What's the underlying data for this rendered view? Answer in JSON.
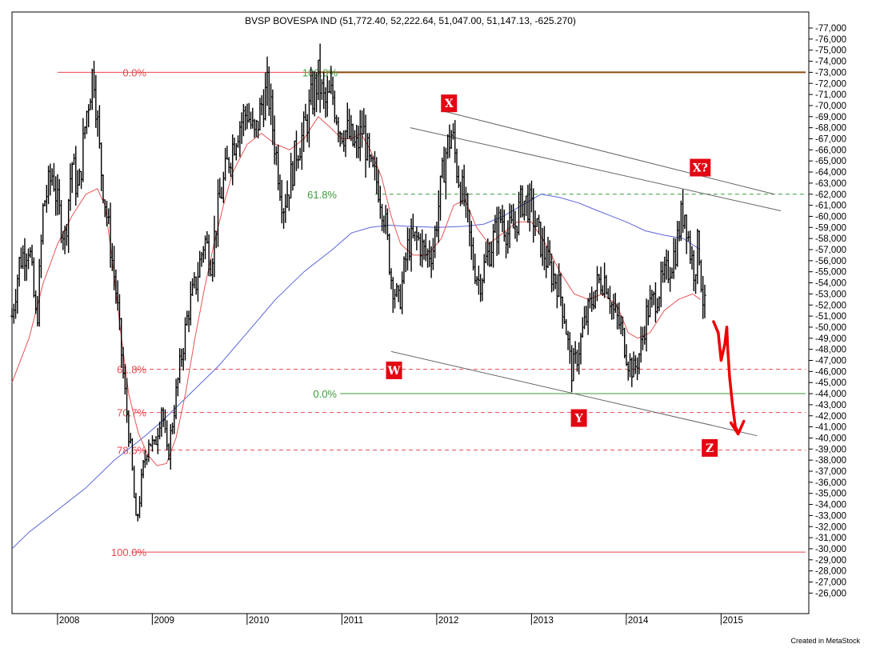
{
  "chart_data": {
    "type": "ohlc",
    "title": "BVSP BOVESPA IND (51,772.40, 52,222.64, 51,047.00, 51,147.13, -625.270)",
    "credit": "Created in MetaStock",
    "ylim": [
      25000,
      78000
    ],
    "xlim": [
      2007.52,
      2015.8
    ],
    "y_ticks": [
      26000,
      27000,
      28000,
      29000,
      30000,
      31000,
      32000,
      33000,
      34000,
      35000,
      36000,
      37000,
      38000,
      39000,
      40000,
      41000,
      42000,
      43000,
      44000,
      45000,
      46000,
      47000,
      48000,
      49000,
      50000,
      51000,
      52000,
      53000,
      54000,
      55000,
      56000,
      57000,
      58000,
      59000,
      60000,
      61000,
      62000,
      63000,
      64000,
      65000,
      66000,
      67000,
      68000,
      69000,
      70000,
      71000,
      72000,
      73000,
      74000,
      75000,
      76000,
      77000
    ],
    "x_ticks": [
      {
        "label": "2008",
        "x": 2008.0
      },
      {
        "label": "2009",
        "x": 2009.0
      },
      {
        "label": "2010",
        "x": 2010.0
      },
      {
        "label": "2011",
        "x": 2011.0
      },
      {
        "label": "2012",
        "x": 2012.0
      },
      {
        "label": "2013",
        "x": 2013.0
      },
      {
        "label": "2014",
        "x": 2014.0
      },
      {
        "label": "2015",
        "x": 2015.0
      }
    ],
    "price_path": [
      [
        2007.52,
        51000
      ],
      [
        2007.6,
        56000
      ],
      [
        2007.7,
        57500
      ],
      [
        2007.78,
        50000
      ],
      [
        2007.85,
        61000
      ],
      [
        2007.95,
        64000
      ],
      [
        2008.0,
        61000
      ],
      [
        2008.08,
        58000
      ],
      [
        2008.15,
        65000
      ],
      [
        2008.22,
        62000
      ],
      [
        2008.3,
        69000
      ],
      [
        2008.38,
        73500
      ],
      [
        2008.45,
        65000
      ],
      [
        2008.55,
        58000
      ],
      [
        2008.62,
        53000
      ],
      [
        2008.7,
        45000
      ],
      [
        2008.78,
        38000
      ],
      [
        2008.83,
        32000
      ],
      [
        2008.9,
        37000
      ],
      [
        2008.96,
        40000
      ],
      [
        2009.02,
        39000
      ],
      [
        2009.1,
        43000
      ],
      [
        2009.16,
        38000
      ],
      [
        2009.22,
        42000
      ],
      [
        2009.3,
        47000
      ],
      [
        2009.38,
        51500
      ],
      [
        2009.46,
        54000
      ],
      [
        2009.55,
        58000
      ],
      [
        2009.62,
        56000
      ],
      [
        2009.7,
        61000
      ],
      [
        2009.8,
        65000
      ],
      [
        2009.9,
        68000
      ],
      [
        2010.0,
        69500
      ],
      [
        2010.08,
        67000
      ],
      [
        2010.15,
        70000
      ],
      [
        2010.22,
        71500
      ],
      [
        2010.3,
        66000
      ],
      [
        2010.38,
        61000
      ],
      [
        2010.45,
        63000
      ],
      [
        2010.52,
        66000
      ],
      [
        2010.6,
        67500
      ],
      [
        2010.68,
        70500
      ],
      [
        2010.75,
        72500
      ],
      [
        2010.82,
        70000
      ],
      [
        2010.9,
        71000
      ],
      [
        2010.98,
        68000
      ],
      [
        2011.06,
        67500
      ],
      [
        2011.15,
        66000
      ],
      [
        2011.22,
        68000
      ],
      [
        2011.3,
        64000
      ],
      [
        2011.38,
        63000
      ],
      [
        2011.45,
        60000
      ],
      [
        2011.52,
        54500
      ],
      [
        2011.6,
        52000
      ],
      [
        2011.7,
        57500
      ],
      [
        2011.8,
        58000
      ],
      [
        2011.88,
        56500
      ],
      [
        2011.96,
        57000
      ],
      [
        2012.05,
        63000
      ],
      [
        2012.1,
        66000
      ],
      [
        2012.16,
        67500
      ],
      [
        2012.22,
        64000
      ],
      [
        2012.3,
        61000
      ],
      [
        2012.38,
        56000
      ],
      [
        2012.45,
        54000
      ],
      [
        2012.52,
        56000
      ],
      [
        2012.6,
        58000
      ],
      [
        2012.68,
        60000
      ],
      [
        2012.75,
        58500
      ],
      [
        2012.82,
        59000
      ],
      [
        2012.9,
        61500
      ],
      [
        2012.98,
        61000
      ],
      [
        2013.05,
        59000
      ],
      [
        2013.12,
        57000
      ],
      [
        2013.2,
        55000
      ],
      [
        2013.28,
        54000
      ],
      [
        2013.35,
        51000
      ],
      [
        2013.42,
        46000
      ],
      [
        2013.47,
        47000
      ],
      [
        2013.55,
        50000
      ],
      [
        2013.62,
        52000
      ],
      [
        2013.7,
        54000
      ],
      [
        2013.78,
        54500
      ],
      [
        2013.86,
        51500
      ],
      [
        2013.94,
        50000
      ],
      [
        2014.02,
        47000
      ],
      [
        2014.08,
        46000
      ],
      [
        2014.15,
        48000
      ],
      [
        2014.22,
        51500
      ],
      [
        2014.3,
        52500
      ],
      [
        2014.38,
        54000
      ],
      [
        2014.46,
        55500
      ],
      [
        2014.52,
        57000
      ],
      [
        2014.58,
        60000
      ],
      [
        2014.62,
        60500
      ],
      [
        2014.67,
        57000
      ],
      [
        2014.72,
        55000
      ],
      [
        2014.76,
        58000
      ],
      [
        2014.8,
        53000
      ],
      [
        2014.84,
        51000
      ]
    ],
    "ma_short": [
      [
        2007.52,
        45000
      ],
      [
        2007.7,
        49000
      ],
      [
        2007.85,
        54000
      ],
      [
        2008.0,
        57500
      ],
      [
        2008.15,
        60000
      ],
      [
        2008.3,
        62000
      ],
      [
        2008.42,
        62500
      ],
      [
        2008.5,
        61000
      ],
      [
        2008.58,
        56000
      ],
      [
        2008.66,
        50000
      ],
      [
        2008.75,
        44000
      ],
      [
        2008.85,
        40500
      ],
      [
        2008.95,
        38500
      ],
      [
        2009.05,
        37500
      ],
      [
        2009.15,
        37700
      ],
      [
        2009.25,
        40000
      ],
      [
        2009.35,
        44000
      ],
      [
        2009.45,
        49000
      ],
      [
        2009.55,
        53500
      ],
      [
        2009.65,
        57500
      ],
      [
        2009.75,
        61000
      ],
      [
        2009.85,
        64000
      ],
      [
        2010.0,
        66500
      ],
      [
        2010.15,
        67500
      ],
      [
        2010.3,
        66500
      ],
      [
        2010.45,
        66000
      ],
      [
        2010.6,
        67000
      ],
      [
        2010.75,
        69000
      ],
      [
        2010.88,
        68000
      ],
      [
        2011.0,
        67000
      ],
      [
        2011.1,
        67000
      ],
      [
        2011.2,
        67500
      ],
      [
        2011.3,
        66000
      ],
      [
        2011.42,
        63500
      ],
      [
        2011.52,
        60000
      ],
      [
        2011.62,
        57500
      ],
      [
        2011.75,
        56500
      ],
      [
        2011.9,
        56500
      ],
      [
        2012.05,
        58000
      ],
      [
        2012.18,
        61000
      ],
      [
        2012.3,
        61500
      ],
      [
        2012.42,
        59000
      ],
      [
        2012.55,
        57500
      ],
      [
        2012.7,
        58500
      ],
      [
        2012.85,
        59500
      ],
      [
        2013.0,
        59500
      ],
      [
        2013.15,
        57500
      ],
      [
        2013.3,
        55000
      ],
      [
        2013.45,
        53000
      ],
      [
        2013.6,
        52500
      ],
      [
        2013.75,
        53000
      ],
      [
        2013.9,
        52000
      ],
      [
        2014.02,
        49500
      ],
      [
        2014.12,
        49000
      ],
      [
        2014.25,
        49500
      ],
      [
        2014.4,
        51500
      ],
      [
        2014.55,
        52500
      ],
      [
        2014.7,
        53000
      ],
      [
        2014.78,
        52500
      ]
    ],
    "ma_long": [
      [
        2007.52,
        30000
      ],
      [
        2007.7,
        31500
      ],
      [
        2008.0,
        33500
      ],
      [
        2008.3,
        35500
      ],
      [
        2008.6,
        38000
      ],
      [
        2008.9,
        40000
      ],
      [
        2009.1,
        41500
      ],
      [
        2009.4,
        44000
      ],
      [
        2009.7,
        46500
      ],
      [
        2010.0,
        49500
      ],
      [
        2010.3,
        52500
      ],
      [
        2010.6,
        55000
      ],
      [
        2010.9,
        57000
      ],
      [
        2011.1,
        58500
      ],
      [
        2011.3,
        59000
      ],
      [
        2011.5,
        59200
      ],
      [
        2011.7,
        59100
      ],
      [
        2012.0,
        59000
      ],
      [
        2012.3,
        59100
      ],
      [
        2012.5,
        59300
      ],
      [
        2012.7,
        60000
      ],
      [
        2012.9,
        61000
      ],
      [
        2013.1,
        62000
      ],
      [
        2013.3,
        61700
      ],
      [
        2013.5,
        61200
      ],
      [
        2013.7,
        60500
      ],
      [
        2014.0,
        59500
      ],
      [
        2014.2,
        58700
      ],
      [
        2014.4,
        58300
      ],
      [
        2014.6,
        58000
      ],
      [
        2014.78,
        57000
      ]
    ],
    "fib_left": {
      "labels": [
        "0.0%",
        "61.8%",
        "70.7%",
        "78.6%",
        "100.0%"
      ],
      "levels": [
        73000,
        46200,
        42300,
        38900,
        29700
      ]
    },
    "fib_right": {
      "labels": [
        "100.0%",
        "61.8%",
        "0.0%"
      ],
      "levels": [
        73000,
        62000,
        44000
      ]
    },
    "wave_labels": [
      {
        "text": "X",
        "x": 2012.13,
        "y": 70200
      },
      {
        "text": "W",
        "x": 2011.55,
        "y": 46100
      },
      {
        "text": "Y",
        "x": 2013.5,
        "y": 41800
      },
      {
        "text": "X?",
        "x": 2014.78,
        "y": 64400
      },
      {
        "text": "Z",
        "x": 2014.88,
        "y": 39100
      }
    ],
    "channel": {
      "upper": [
        [
          2012.07,
          69500
        ],
        [
          2015.56,
          62000
        ]
      ],
      "middle": [
        [
          2011.72,
          68000
        ],
        [
          2015.63,
          60500
        ]
      ],
      "lower": [
        [
          2011.52,
          47800
        ],
        [
          2015.38,
          40200
        ]
      ]
    },
    "projection": [
      [
        2014.92,
        50500
      ],
      [
        2014.97,
        49500
      ],
      [
        2015.0,
        47000
      ],
      [
        2015.04,
        48500
      ],
      [
        2015.06,
        50000
      ],
      [
        2015.07,
        48000
      ],
      [
        2015.09,
        45500
      ],
      [
        2015.12,
        43000
      ],
      [
        2015.15,
        41000
      ],
      [
        2015.18,
        40500
      ]
    ],
    "colors": {
      "fib_red": "#e8474d",
      "fib_green": "#3c9a3c",
      "top_line": "#8c4a0e",
      "ma_short": "#e85454",
      "ma_long": "#5a65d8",
      "marker": "#e30613",
      "projection": "#ee0000"
    }
  }
}
